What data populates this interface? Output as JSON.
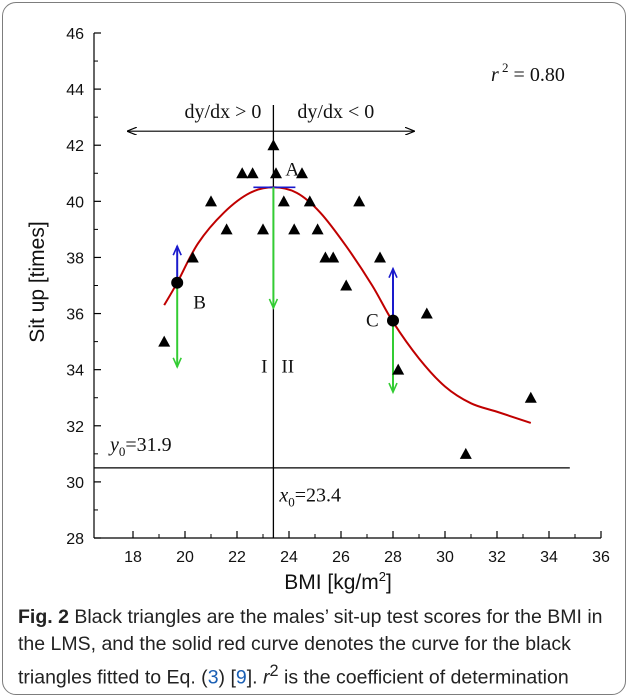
{
  "chart_data": {
    "type": "scatter",
    "xlabel": "BMI [kg/m",
    "xlabel_sup": "2",
    "xlabel_end": "]",
    "ylabel": "Sit up [times]",
    "xlim": [
      16.5,
      36
    ],
    "ylim": [
      28,
      46
    ],
    "xticks": [
      "18",
      "20",
      "22",
      "24",
      "26",
      "28",
      "30",
      "32",
      "34",
      "36"
    ],
    "yticks": [
      "28",
      "30",
      "32",
      "34",
      "36",
      "38",
      "40",
      "42",
      "44",
      "46"
    ],
    "points": [
      {
        "x": 19.2,
        "y": 35
      },
      {
        "x": 20.3,
        "y": 38
      },
      {
        "x": 21.0,
        "y": 40
      },
      {
        "x": 21.6,
        "y": 39
      },
      {
        "x": 22.2,
        "y": 41
      },
      {
        "x": 22.6,
        "y": 41
      },
      {
        "x": 23.0,
        "y": 39
      },
      {
        "x": 23.4,
        "y": 42
      },
      {
        "x": 23.5,
        "y": 41
      },
      {
        "x": 23.8,
        "y": 40
      },
      {
        "x": 24.2,
        "y": 39
      },
      {
        "x": 24.5,
        "y": 41
      },
      {
        "x": 24.8,
        "y": 40
      },
      {
        "x": 25.1,
        "y": 39
      },
      {
        "x": 25.4,
        "y": 38
      },
      {
        "x": 25.7,
        "y": 38
      },
      {
        "x": 26.2,
        "y": 37
      },
      {
        "x": 26.7,
        "y": 40
      },
      {
        "x": 27.5,
        "y": 38
      },
      {
        "x": 28.2,
        "y": 34
      },
      {
        "x": 29.3,
        "y": 36
      },
      {
        "x": 30.8,
        "y": 31
      },
      {
        "x": 33.3,
        "y": 33
      }
    ],
    "fitted_curve": {
      "color": "#c00000",
      "points": [
        [
          19.2,
          36.3
        ],
        [
          19.7,
          37.1
        ],
        [
          20.5,
          38.5
        ],
        [
          21.5,
          39.6
        ],
        [
          22.5,
          40.3
        ],
        [
          23.4,
          40.5
        ],
        [
          24.3,
          40.3
        ],
        [
          25.2,
          39.6
        ],
        [
          26.2,
          38.4
        ],
        [
          27.2,
          37.0
        ],
        [
          28.0,
          35.7
        ],
        [
          29.0,
          34.4
        ],
        [
          30.0,
          33.4
        ],
        [
          31.0,
          32.8
        ],
        [
          32.0,
          32.5
        ],
        [
          33.3,
          32.1
        ]
      ]
    },
    "x0": 23.4,
    "y0": 31.9,
    "y0_line_y": 30.5,
    "marked_points": [
      {
        "label": "A",
        "x": 23.4,
        "y": 40.5
      },
      {
        "label": "B",
        "x": 19.7,
        "y": 37.1
      },
      {
        "label": "C",
        "x": 28.0,
        "y": 35.75
      }
    ],
    "annotations": {
      "r2": "= 0.80",
      "left_region": "dy/dx > 0",
      "right_region": "dy/dx < 0",
      "region_I": "I",
      "region_II": "II",
      "y0_label": "=31.9",
      "x0_label": "=23.4"
    },
    "colors": {
      "points": "#000000",
      "curve": "#c00000",
      "down_arrow": "#33cc33",
      "up_arrow": "#1a1acc",
      "tangent": "#1a1acc"
    }
  },
  "caption": {
    "label": "Fig. 2",
    "text_1": "  Black triangles are the males’ sit-up test scores for the BMI in the LMS, and the solid red curve denotes the curve for the black triangles fitted to Eq. (",
    "ref_eq": "3",
    "text_2": ") [",
    "ref_cite": "9",
    "text_3": "]. ",
    "r_sym": "r",
    "r_sup": "2",
    "text_4": " is the coefficient of determination"
  }
}
